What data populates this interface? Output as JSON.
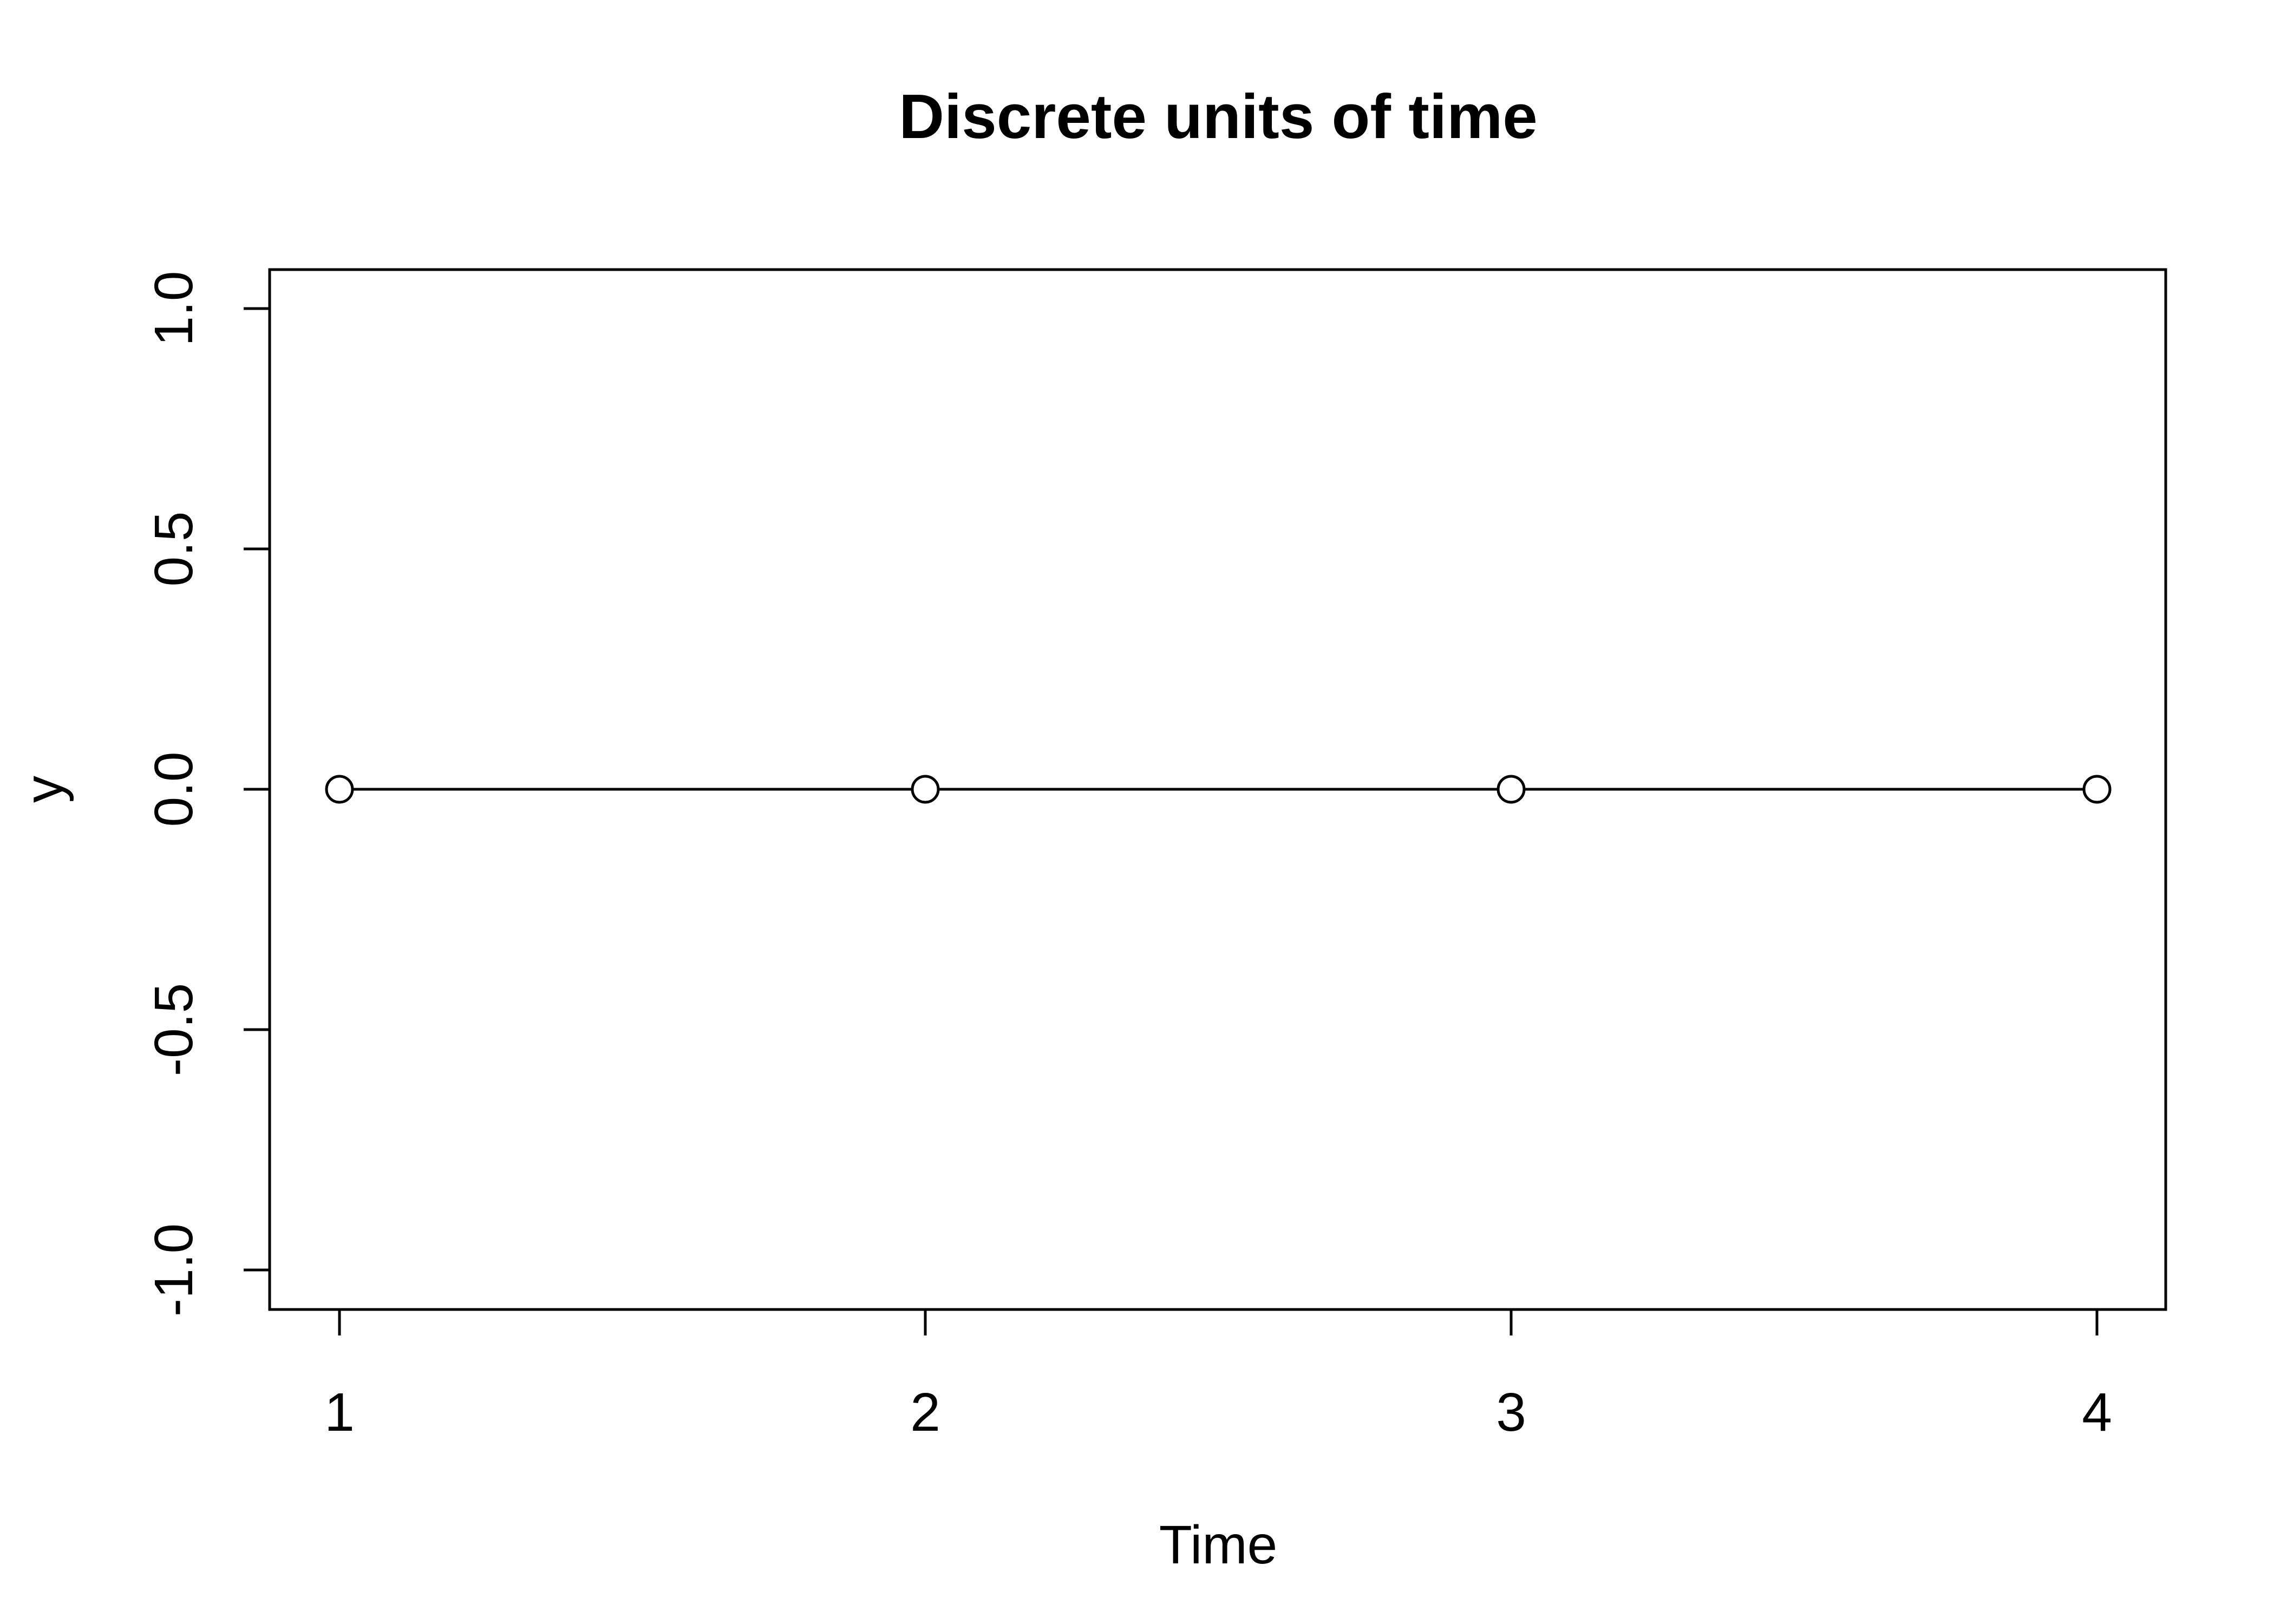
{
  "chart_data": {
    "type": "line",
    "title": "Discrete units of time",
    "xlabel": "Time",
    "ylabel": "y",
    "x": [
      1,
      2,
      3,
      4
    ],
    "series": [
      {
        "values": [
          0,
          0,
          0,
          0
        ]
      }
    ],
    "xticks": [
      1,
      2,
      3,
      4
    ],
    "xtick_labels": [
      "1",
      "2",
      "3",
      "4"
    ],
    "yticks": [
      -1.0,
      -0.5,
      0.0,
      0.5,
      1.0
    ],
    "ytick_labels": [
      "-1.0",
      "-0.5",
      "0.0",
      "0.5",
      "1.0"
    ],
    "xlim": [
      1,
      4
    ],
    "ylim": [
      -1,
      1
    ],
    "grid": false,
    "legend": "none",
    "markers": "open-circle",
    "colors": {
      "line": "#000000",
      "background": "#ffffff"
    }
  }
}
